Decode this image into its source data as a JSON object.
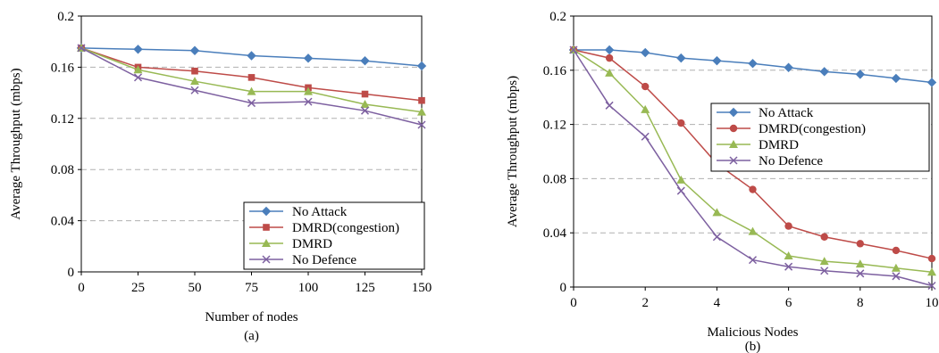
{
  "chart_data": [
    {
      "type": "line",
      "panel_label": "(a)",
      "xlabel": "Number of nodes",
      "ylabel": "Average Throughput (mbps)",
      "x": [
        0,
        25,
        50,
        75,
        100,
        125,
        150
      ],
      "x_ticks": [
        "0",
        "25",
        "50",
        "75",
        "100",
        "125",
        "150"
      ],
      "ylim": [
        0,
        0.2
      ],
      "y_ticks": [
        "0",
        "0.04",
        "0.08",
        "0.12",
        "0.16",
        "0.2"
      ],
      "grid": "horizontal dashed",
      "legend_position": "bottom-right",
      "series": [
        {
          "name": "No Attack",
          "marker": "diamond",
          "color": "#4a7ebb",
          "values": [
            0.175,
            0.174,
            0.173,
            0.169,
            0.167,
            0.165,
            0.161
          ]
        },
        {
          "name": "DMRD(congestion)",
          "marker": "square",
          "color": "#be4b48",
          "values": [
            0.175,
            0.16,
            0.157,
            0.152,
            0.144,
            0.139,
            0.134
          ]
        },
        {
          "name": "DMRD",
          "marker": "triangle",
          "color": "#98b954",
          "values": [
            0.175,
            0.158,
            0.149,
            0.141,
            0.141,
            0.131,
            0.125
          ]
        },
        {
          "name": "No Defence",
          "marker": "x",
          "color": "#7d60a0",
          "values": [
            0.175,
            0.152,
            0.142,
            0.132,
            0.133,
            0.126,
            0.115
          ]
        }
      ]
    },
    {
      "type": "line",
      "panel_label": "(b)",
      "xlabel": "Malicious Nodes",
      "ylabel": "Average Throughput (mbps)",
      "x": [
        0,
        1,
        2,
        3,
        4,
        5,
        6,
        7,
        8,
        9,
        10
      ],
      "x_ticks": [
        "0",
        "2",
        "4",
        "6",
        "8",
        "10"
      ],
      "ylim": [
        0,
        0.2
      ],
      "y_ticks": [
        "0",
        "0.04",
        "0.08",
        "0.12",
        "0.16",
        "0.2"
      ],
      "grid": "horizontal dashed",
      "legend_position": "center-right",
      "series": [
        {
          "name": "No Attack",
          "marker": "diamond",
          "color": "#4a7ebb",
          "values": [
            0.175,
            0.175,
            0.173,
            0.169,
            0.167,
            0.165,
            0.162,
            0.159,
            0.157,
            0.154,
            0.151
          ]
        },
        {
          "name": "DMRD(congestion)",
          "marker": "circle",
          "color": "#be4b48",
          "values": [
            0.175,
            0.169,
            0.148,
            0.121,
            0.091,
            0.072,
            0.045,
            0.037,
            0.032,
            0.027,
            0.021
          ]
        },
        {
          "name": "DMRD",
          "marker": "triangle",
          "color": "#98b954",
          "values": [
            0.175,
            0.158,
            0.131,
            0.079,
            0.055,
            0.041,
            0.023,
            0.019,
            0.017,
            0.014,
            0.011
          ]
        },
        {
          "name": "No Defence",
          "marker": "x",
          "color": "#7d60a0",
          "values": [
            0.175,
            0.134,
            0.111,
            0.071,
            0.037,
            0.02,
            0.015,
            0.012,
            0.01,
            0.008,
            0.001
          ]
        }
      ]
    }
  ]
}
